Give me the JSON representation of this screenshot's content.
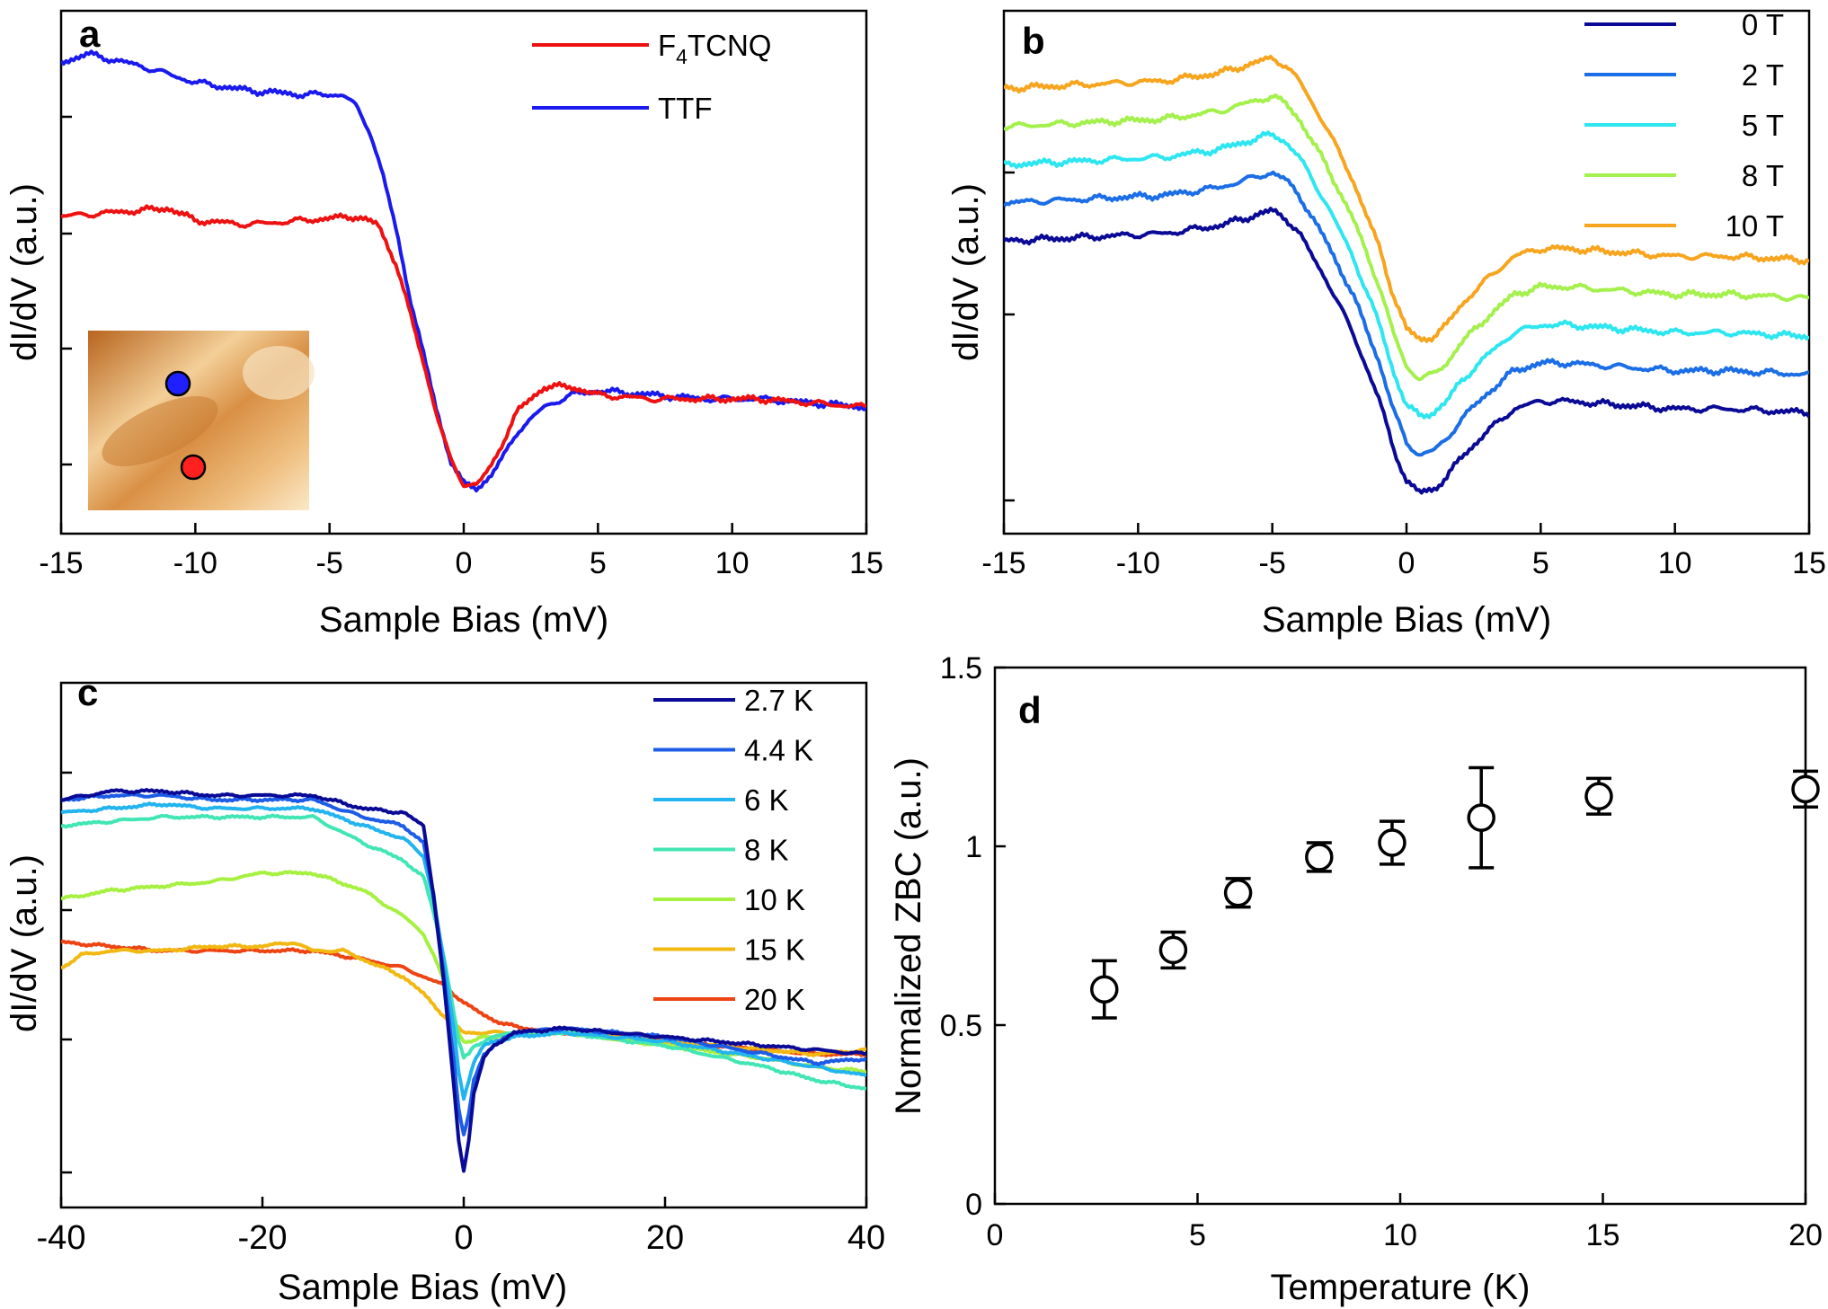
{
  "figure": {
    "colors": {
      "axis": "#000000",
      "marker": "#000000"
    }
  },
  "chart_data": [
    {
      "panel": "a",
      "type": "line",
      "xlabel": "Sample Bias (mV)",
      "ylabel": "dI/dV (a.u.)",
      "xlim": [
        -15,
        15
      ],
      "ylim": [
        0,
        1.2
      ],
      "xticks": [
        "-15",
        "-10",
        "-5",
        "0",
        "5",
        "10",
        "15"
      ],
      "legend_position": "top-right",
      "inset": {
        "description_marker_colors": [
          "#1f1fff",
          "#ff2020"
        ]
      },
      "series": [
        {
          "name": "F4TCNQ",
          "label_main": "F",
          "label_sub": "4",
          "label_rest": "TCNQ",
          "color": "#ee1111",
          "x": [
            -15,
            -13,
            -11,
            -10,
            -8,
            -6,
            -4,
            -3.2,
            -2.5,
            -2,
            -1.5,
            -1,
            -0.5,
            0,
            0.5,
            1,
            1.5,
            2,
            3,
            4,
            5,
            7,
            9,
            11,
            13,
            15
          ],
          "y": [
            0.72,
            0.73,
            0.74,
            0.71,
            0.7,
            0.71,
            0.72,
            0.7,
            0.6,
            0.48,
            0.36,
            0.23,
            0.12,
            0.06,
            0.06,
            0.1,
            0.17,
            0.24,
            0.3,
            0.3,
            0.28,
            0.27,
            0.27,
            0.27,
            0.26,
            0.25
          ]
        },
        {
          "name": "TTF",
          "label_main": "TTF",
          "color": "#1a1aee",
          "x": [
            -15,
            -14,
            -12,
            -10,
            -8,
            -6,
            -4.5,
            -4,
            -3.5,
            -3,
            -2.5,
            -2,
            -1.5,
            -1,
            -0.5,
            0,
            0.5,
            1,
            1.5,
            2,
            3,
            4,
            5,
            7,
            9,
            11,
            13,
            15
          ],
          "y": [
            1.1,
            1.12,
            1.09,
            1.05,
            1.03,
            1.02,
            1.02,
            0.99,
            0.93,
            0.82,
            0.68,
            0.52,
            0.38,
            0.24,
            0.12,
            0.06,
            0.05,
            0.08,
            0.13,
            0.19,
            0.25,
            0.28,
            0.29,
            0.28,
            0.27,
            0.27,
            0.26,
            0.25
          ]
        }
      ]
    },
    {
      "panel": "b",
      "type": "line",
      "xlabel": "Sample Bias (mV)",
      "ylabel": "dI/dV (a.u.)",
      "xlim": [
        -15,
        15
      ],
      "ylim": [
        0,
        1.3
      ],
      "xticks": [
        "-15",
        "-10",
        "-5",
        "0",
        "5",
        "10",
        "15"
      ],
      "legend_position": "top-right",
      "series": [
        {
          "name": "0 T",
          "color": "#0a0a96",
          "offset": 0
        },
        {
          "name": "2 T",
          "color": "#1c6ee6",
          "offset": 0.1
        },
        {
          "name": "5 T",
          "color": "#2ee6f0",
          "offset": 0.2
        },
        {
          "name": "8 T",
          "color": "#a4f04c",
          "offset": 0.3
        },
        {
          "name": "10 T",
          "color": "#f7a51f",
          "offset": 0.4
        }
      ],
      "base_curve": {
        "x": [
          -15,
          -12,
          -9,
          -7,
          -6,
          -5,
          -4.5,
          -4,
          -3,
          -2,
          -1,
          -0.5,
          0,
          0.5,
          1,
          1.5,
          2,
          3,
          4,
          5,
          6,
          8,
          10,
          12,
          15
        ],
        "y": [
          0.72,
          0.73,
          0.74,
          0.76,
          0.78,
          0.8,
          0.78,
          0.74,
          0.62,
          0.48,
          0.3,
          0.18,
          0.09,
          0.06,
          0.07,
          0.1,
          0.15,
          0.22,
          0.28,
          0.3,
          0.3,
          0.29,
          0.28,
          0.28,
          0.27
        ]
      }
    },
    {
      "panel": "c",
      "type": "line",
      "xlabel": "Sample Bias (mV)",
      "ylabel": "dI/dV (a.u.)",
      "xlim": [
        -40,
        40
      ],
      "ylim": [
        0,
        1.0
      ],
      "xticks": [
        "-40",
        "-20",
        "0",
        "20",
        "40"
      ],
      "legend_position": "top-right",
      "series": [
        {
          "name": "2.7 K",
          "color": "#0a0a96",
          "x": [
            -40,
            -35,
            -30,
            -25,
            -20,
            -15,
            -10,
            -6,
            -4,
            -3,
            -2,
            -1,
            -0.5,
            0,
            0.5,
            1,
            2,
            3,
            5,
            10,
            20,
            30,
            35,
            40
          ],
          "y": [
            0.86,
            0.88,
            0.88,
            0.87,
            0.87,
            0.87,
            0.84,
            0.83,
            0.8,
            0.64,
            0.44,
            0.2,
            0.07,
            0.0,
            0.07,
            0.18,
            0.26,
            0.29,
            0.32,
            0.33,
            0.31,
            0.29,
            0.28,
            0.27
          ]
        },
        {
          "name": "4.4 K",
          "color": "#1c5ce6",
          "x": [
            -40,
            -35,
            -30,
            -25,
            -20,
            -15,
            -10,
            -6,
            -4,
            -3,
            -2,
            -1,
            -0.5,
            0,
            0.5,
            1,
            2,
            3,
            5,
            10,
            20,
            30,
            35,
            40
          ],
          "y": [
            0.86,
            0.87,
            0.87,
            0.86,
            0.86,
            0.86,
            0.82,
            0.8,
            0.76,
            0.64,
            0.46,
            0.26,
            0.14,
            0.08,
            0.13,
            0.21,
            0.27,
            0.29,
            0.32,
            0.33,
            0.31,
            0.27,
            0.25,
            0.26
          ]
        },
        {
          "name": "6 K",
          "color": "#22b4ee",
          "x": [
            -40,
            -35,
            -30,
            -25,
            -20,
            -15,
            -10,
            -6,
            -4,
            -3,
            -2,
            -1,
            -0.5,
            0,
            0.5,
            1,
            2,
            3,
            5,
            10,
            20,
            30,
            35,
            40
          ],
          "y": [
            0.83,
            0.84,
            0.85,
            0.84,
            0.84,
            0.84,
            0.8,
            0.77,
            0.73,
            0.63,
            0.49,
            0.33,
            0.23,
            0.17,
            0.21,
            0.25,
            0.29,
            0.3,
            0.31,
            0.32,
            0.3,
            0.26,
            0.24,
            0.22
          ]
        },
        {
          "name": "8 K",
          "color": "#42e6b4",
          "x": [
            -40,
            -35,
            -30,
            -25,
            -20,
            -15,
            -10,
            -6,
            -4,
            -3,
            -2,
            -1,
            -0.5,
            0,
            0.5,
            1,
            2,
            3,
            5,
            10,
            20,
            30,
            35,
            40
          ],
          "y": [
            0.8,
            0.81,
            0.82,
            0.82,
            0.82,
            0.82,
            0.76,
            0.72,
            0.68,
            0.6,
            0.5,
            0.37,
            0.3,
            0.26,
            0.27,
            0.29,
            0.3,
            0.31,
            0.32,
            0.32,
            0.29,
            0.24,
            0.21,
            0.19
          ]
        },
        {
          "name": "10 K",
          "color": "#a6f040",
          "x": [
            -40,
            -35,
            -30,
            -25,
            -20,
            -15,
            -10,
            -6,
            -4,
            -3,
            -2,
            -1,
            -0.5,
            0,
            0.5,
            1,
            2,
            3,
            5,
            10,
            20,
            30,
            35,
            40
          ],
          "y": [
            0.63,
            0.65,
            0.66,
            0.67,
            0.69,
            0.69,
            0.65,
            0.59,
            0.55,
            0.5,
            0.44,
            0.36,
            0.32,
            0.3,
            0.3,
            0.3,
            0.31,
            0.31,
            0.32,
            0.32,
            0.29,
            0.26,
            0.24,
            0.23
          ]
        },
        {
          "name": "15 K",
          "color": "#f2b812",
          "x": [
            -40,
            -38,
            -35,
            -30,
            -25,
            -20,
            -17,
            -15,
            -12,
            -10,
            -6,
            -4,
            -2,
            0,
            2,
            5,
            10,
            20,
            30,
            35,
            40
          ],
          "y": [
            0.47,
            0.5,
            0.51,
            0.51,
            0.52,
            0.52,
            0.53,
            0.51,
            0.51,
            0.49,
            0.45,
            0.41,
            0.36,
            0.32,
            0.32,
            0.32,
            0.32,
            0.3,
            0.28,
            0.27,
            0.28
          ]
        },
        {
          "name": "20 K",
          "color": "#ee4414",
          "x": [
            -40,
            -35,
            -30,
            -25,
            -20,
            -15,
            -10,
            -6,
            -4,
            -2,
            0,
            2,
            4,
            6,
            10,
            20,
            30,
            35,
            40
          ],
          "y": [
            0.53,
            0.52,
            0.51,
            0.51,
            0.51,
            0.51,
            0.49,
            0.47,
            0.45,
            0.43,
            0.39,
            0.36,
            0.34,
            0.33,
            0.32,
            0.3,
            0.28,
            0.27,
            0.27
          ]
        }
      ]
    },
    {
      "panel": "d",
      "type": "scatter",
      "xlabel": "Temperature (K)",
      "ylabel": "Normalized ZBC (a.u.)",
      "xlim": [
        0,
        20
      ],
      "ylim": [
        0,
        1.5
      ],
      "xticks": [
        "0",
        "5",
        "10",
        "15",
        "20"
      ],
      "yticks": [
        "0",
        "0.5",
        "1",
        "1.5"
      ],
      "x": [
        2.7,
        4.4,
        6.0,
        8.0,
        9.8,
        12.0,
        14.9,
        20.0
      ],
      "y": [
        0.6,
        0.71,
        0.87,
        0.97,
        1.01,
        1.08,
        1.14,
        1.16
      ],
      "err": [
        0.08,
        0.05,
        0.04,
        0.04,
        0.06,
        0.14,
        0.05,
        0.05
      ]
    }
  ],
  "panels": {
    "a": {
      "letter": "a"
    },
    "b": {
      "letter": "b"
    },
    "c": {
      "letter": "c"
    },
    "d": {
      "letter": "d"
    }
  }
}
